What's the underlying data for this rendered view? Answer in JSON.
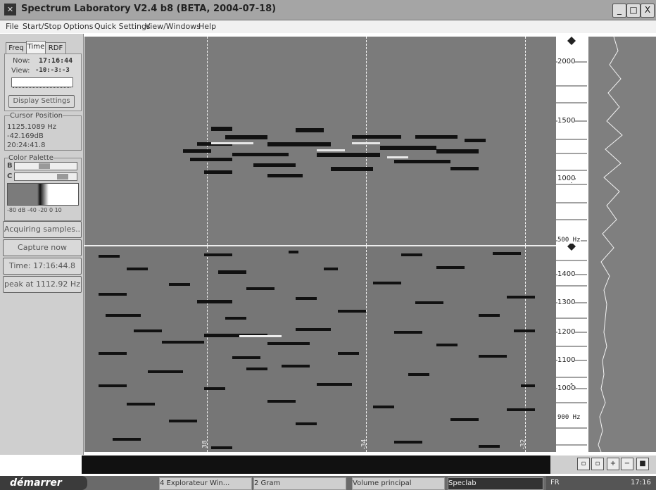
{
  "window": {
    "title": "Spectrum Laboratory V2.4 b8 (BETA,  2004-07-18)",
    "minimize": "_",
    "maximize": "□",
    "close": "X"
  },
  "menu": [
    "File",
    "Start/Stop",
    "Options",
    "Quick Settings",
    "View/Windows",
    "Help"
  ],
  "tabs": [
    "Freq",
    "Time",
    "RDF"
  ],
  "time_panel": {
    "now_label": "Now:",
    "now_value": "17:16:44",
    "view_label": "View:",
    "view_value": "-10:-3:-3"
  },
  "display_settings_label": "Display Settings",
  "cursor": {
    "group_label": "Cursor Position",
    "freq": "1125.1089 Hz",
    "level": "-42.169dB",
    "time": "20:24:41.8"
  },
  "palette": {
    "group_label": "Color Palette",
    "b_label": "B",
    "c_label": "C",
    "ticks": "-80 dB  -40  -20  0 10"
  },
  "buttons": {
    "acquiring": "Acquiring samples..",
    "capture": "Capture now",
    "time": "Time: 17:16:44.8",
    "peak": "peak at 1112.92 Hz"
  },
  "top_scale_labels": [
    "2000",
    "1500",
    "1000",
    "500 Hz"
  ],
  "bottom_scale_labels": [
    "1400",
    "1300",
    "1200",
    "1100",
    "1000",
    "900 Hz"
  ],
  "time_markers": [
    "38",
    "-34",
    "-32"
  ],
  "taskbar": {
    "start": "démarrer",
    "tasks": [
      "4 Explorateur Win...",
      "2 Gram",
      "Volume principal",
      "Speclab"
    ],
    "lang": "FR",
    "clock": "17:16"
  },
  "colors": {
    "spectrogram_bg": "#7b7b7b",
    "scope_bg": "#7f7f7f",
    "taskbar": "#6a6a6a"
  }
}
